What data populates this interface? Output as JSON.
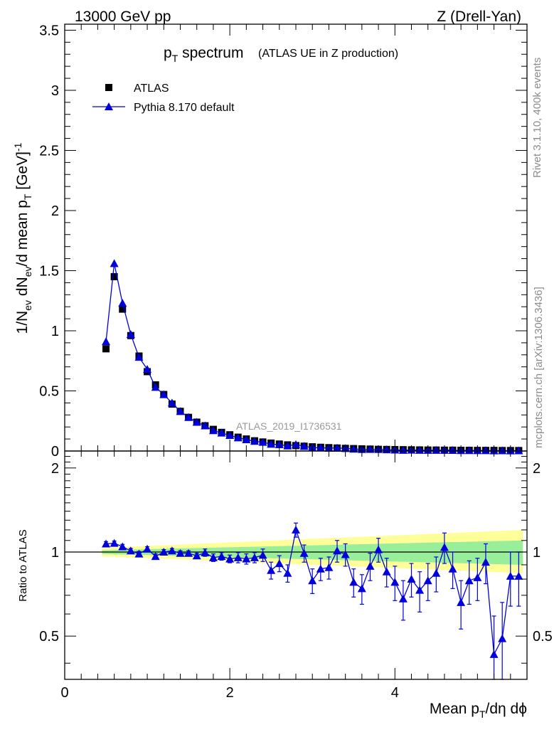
{
  "header": {
    "left": "13000 GeV pp",
    "right": "Z (Drell-Yan)"
  },
  "side": {
    "rivet": "Rivet 3.1.10,  400k events",
    "mcplots": "mcplots.cern.ch [arXiv:1306.3436]"
  },
  "watermark": "ATLAS_2019_I1736531",
  "colors": {
    "data": "#000000",
    "mc": "#0000dd",
    "band_inner": "#99ee99",
    "band_outer": "#ffff99"
  },
  "chart_data": [
    {
      "type": "scatter",
      "title_main": "p",
      "title_sub": "T",
      "title_rest": " spectrum",
      "title_note": "(ATLAS UE in Z production)",
      "ylabel": {
        "a": "1/N",
        "a_sub": "ev",
        "b": " dN",
        "b_sub": "ev",
        "c": "/d mean p",
        "c_sub": "T",
        "d": " [GeV]",
        "d_sup": "-1"
      },
      "xlim": [
        0,
        5.6
      ],
      "ylim": [
        0,
        3.55
      ],
      "yticks": [
        {
          "v": 0,
          "label": "0"
        },
        {
          "v": 0.5,
          "label": "0.5"
        },
        {
          "v": 1,
          "label": "1"
        },
        {
          "v": 1.5,
          "label": "1.5"
        },
        {
          "v": 2,
          "label": "2"
        },
        {
          "v": 2.5,
          "label": "2.5"
        },
        {
          "v": 3,
          "label": "3"
        },
        {
          "v": 3.5,
          "label": "3.5"
        }
      ],
      "legend": [
        {
          "name": "ATLAS",
          "marker": "square"
        },
        {
          "name": "Pythia 8.170 default",
          "marker": "triangle"
        }
      ],
      "x": [
        0.5,
        0.6,
        0.7,
        0.8,
        0.9,
        1.0,
        1.1,
        1.2,
        1.3,
        1.4,
        1.5,
        1.6,
        1.7,
        1.8,
        1.9,
        2.0,
        2.1,
        2.2,
        2.3,
        2.4,
        2.5,
        2.6,
        2.7,
        2.8,
        2.9,
        3.0,
        3.1,
        3.2,
        3.3,
        3.4,
        3.5,
        3.6,
        3.7,
        3.8,
        3.9,
        4.0,
        4.1,
        4.2,
        4.3,
        4.4,
        4.5,
        4.6,
        4.7,
        4.8,
        4.9,
        5.0,
        5.1,
        5.2,
        5.3,
        5.4,
        5.5
      ],
      "series": [
        {
          "name": "ATLAS",
          "marker": "square",
          "values": [
            0.85,
            1.45,
            1.18,
            0.96,
            0.79,
            0.66,
            0.55,
            0.47,
            0.39,
            0.33,
            0.28,
            0.24,
            0.21,
            0.18,
            0.155,
            0.135,
            0.115,
            0.1,
            0.085,
            0.075,
            0.066,
            0.058,
            0.051,
            0.045,
            0.04,
            0.035,
            0.031,
            0.028,
            0.025,
            0.022,
            0.02,
            0.018,
            0.016,
            0.014,
            0.013,
            0.012,
            0.011,
            0.01,
            0.009,
            0.008,
            0.008,
            0.007,
            0.007,
            0.006,
            0.006,
            0.005,
            0.005,
            0.005,
            0.004,
            0.004,
            0.004
          ]
        },
        {
          "name": "Pythia 8.170 default",
          "marker": "triangle",
          "values": [
            0.91,
            1.56,
            1.23,
            0.97,
            0.78,
            0.68,
            0.53,
            0.47,
            0.4,
            0.33,
            0.28,
            0.24,
            0.21,
            0.17,
            0.15,
            0.13,
            0.11,
            0.095,
            0.081,
            0.073,
            0.057,
            0.053,
            0.043,
            0.054,
            0.04,
            0.028,
            0.027,
            0.024,
            0.025,
            0.022,
            0.016,
            0.013,
            0.014,
            0.014,
            0.011,
            0.009,
            0.007,
            0.008,
            0.0067,
            0.0063,
            0.0067,
            0.0073,
            0.0061,
            0.0041,
            0.0047,
            0.0041,
            0.0046,
            0.0022,
            0.0037,
            0.002,
            0.0033
          ]
        }
      ]
    },
    {
      "type": "scatter",
      "ylabel": "Ratio to ATLAS",
      "xlabel": {
        "a": "Mean p",
        "a_sub": "T",
        "b": "/dη dϕ"
      },
      "xlim": [
        0,
        5.6
      ],
      "ylim": [
        0.35,
        2.3
      ],
      "log_y": true,
      "xticks": [
        {
          "v": 0,
          "label": "0"
        },
        {
          "v": 2,
          "label": "2"
        },
        {
          "v": 4,
          "label": "4"
        }
      ],
      "yticks": [
        {
          "v": 0.5,
          "label": "0.5"
        },
        {
          "v": 1,
          "label": "1"
        },
        {
          "v": 2,
          "label": "2"
        }
      ],
      "band": {
        "x": [
          0.45,
          5.55
        ],
        "inner": [
          [
            0.985,
            1.015
          ],
          [
            0.9,
            1.1
          ]
        ],
        "outer": [
          [
            0.965,
            1.035
          ],
          [
            0.84,
            1.2
          ]
        ]
      },
      "x": [
        0.5,
        0.6,
        0.7,
        0.8,
        0.9,
        1.0,
        1.1,
        1.2,
        1.3,
        1.4,
        1.5,
        1.6,
        1.7,
        1.8,
        1.9,
        2.0,
        2.1,
        2.2,
        2.3,
        2.4,
        2.5,
        2.6,
        2.7,
        2.8,
        2.9,
        3.0,
        3.1,
        3.2,
        3.3,
        3.4,
        3.5,
        3.6,
        3.7,
        3.8,
        3.9,
        4.0,
        4.1,
        4.2,
        4.3,
        4.4,
        4.5,
        4.6,
        4.7,
        4.8,
        4.9,
        5.0,
        5.1,
        5.2,
        5.3,
        5.4,
        5.5
      ],
      "series": [
        {
          "name": "Pythia 8.170 default",
          "marker": "triangle",
          "values": [
            1.07,
            1.075,
            1.045,
            1.01,
            0.985,
            1.025,
            0.965,
            1.0,
            1.01,
            0.99,
            0.99,
            0.97,
            0.995,
            0.955,
            0.965,
            0.945,
            0.955,
            0.945,
            0.955,
            0.975,
            0.86,
            0.91,
            0.84,
            1.2,
            0.99,
            0.79,
            0.87,
            0.88,
            1.01,
            0.98,
            0.78,
            0.74,
            0.89,
            1.02,
            0.85,
            0.78,
            0.68,
            0.8,
            0.73,
            0.79,
            0.84,
            1.04,
            0.87,
            0.66,
            0.79,
            0.81,
            0.92,
            0.43,
            0.49,
            0.82,
            0.82
          ],
          "err": [
            0.02,
            0.02,
            0.02,
            0.02,
            0.02,
            0.02,
            0.02,
            0.02,
            0.02,
            0.02,
            0.02,
            0.02,
            0.03,
            0.03,
            0.03,
            0.03,
            0.04,
            0.04,
            0.04,
            0.05,
            0.06,
            0.06,
            0.06,
            0.07,
            0.07,
            0.08,
            0.08,
            0.08,
            0.09,
            0.09,
            0.09,
            0.09,
            0.1,
            0.1,
            0.1,
            0.11,
            0.11,
            0.11,
            0.12,
            0.12,
            0.12,
            0.13,
            0.13,
            0.13,
            0.14,
            0.14,
            0.15,
            0.16,
            0.17,
            0.18,
            0.18
          ]
        }
      ]
    }
  ]
}
